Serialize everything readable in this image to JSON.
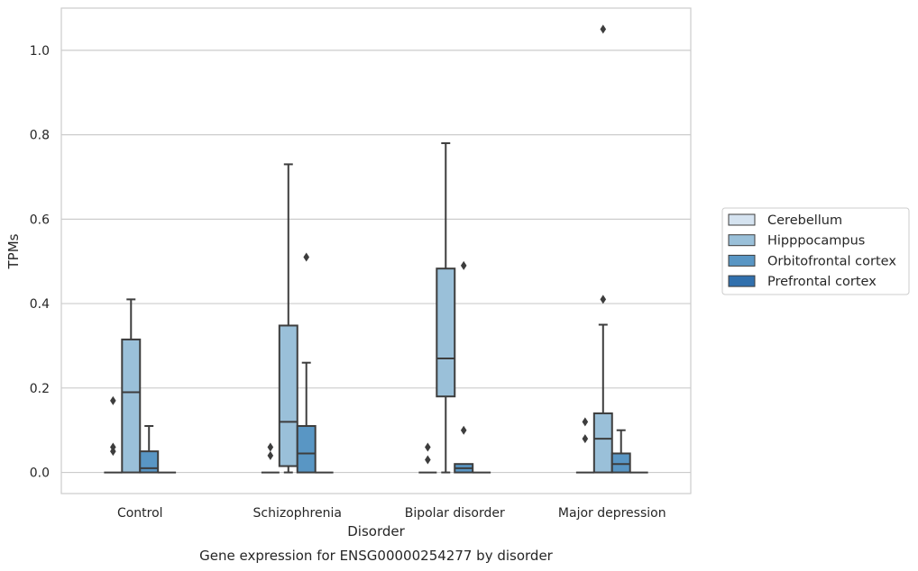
{
  "chart_data": {
    "type": "box",
    "title": "",
    "caption": "Gene expression for ENSG00000254277 by disorder",
    "xlabel": "Disorder",
    "ylabel": "TPMs",
    "ylim": [
      -0.05,
      1.1
    ],
    "yticks": [
      0.0,
      0.2,
      0.4,
      0.6,
      0.8,
      1.0
    ],
    "ytick_labels": [
      "0.0",
      "0.2",
      "0.4",
      "0.6",
      "0.8",
      "1.0"
    ],
    "grid": "horizontal",
    "legend_position": "right",
    "categories": [
      "Control",
      "Schizophrenia",
      "Bipolar disorder",
      "Major depression"
    ],
    "series": [
      {
        "name": "Cerebellum",
        "color": "#d5e3f0",
        "boxes": [
          {
            "min": 0,
            "q1": 0,
            "median": 0,
            "q3": 0,
            "max": 0,
            "outliers": [
              0.05,
              0.06,
              0.17
            ]
          },
          {
            "min": 0,
            "q1": 0,
            "median": 0,
            "q3": 0,
            "max": 0,
            "outliers": [
              0.04,
              0.06
            ]
          },
          {
            "min": 0,
            "q1": 0,
            "median": 0,
            "q3": 0,
            "max": 0,
            "outliers": [
              0.03,
              0.06
            ]
          },
          {
            "min": 0,
            "q1": 0,
            "median": 0,
            "q3": 0,
            "max": 0,
            "outliers": [
              0.08,
              0.12
            ]
          }
        ]
      },
      {
        "name": "Hipppocampus",
        "color": "#9ac0d9",
        "boxes": [
          {
            "min": 0,
            "q1": 0,
            "median": 0.19,
            "q3": 0.315,
            "max": 0.41,
            "outliers": []
          },
          {
            "min": 0,
            "q1": 0.015,
            "median": 0.12,
            "q3": 0.348,
            "max": 0.73,
            "outliers": []
          },
          {
            "min": 0,
            "q1": 0.18,
            "median": 0.27,
            "q3": 0.483,
            "max": 0.78,
            "outliers": []
          },
          {
            "min": 0,
            "q1": 0,
            "median": 0.08,
            "q3": 0.14,
            "max": 0.35,
            "outliers": [
              0.41,
              1.05
            ]
          }
        ]
      },
      {
        "name": "Orbitofrontal cortex",
        "color": "#5996c4",
        "boxes": [
          {
            "min": 0,
            "q1": 0,
            "median": 0.01,
            "q3": 0.05,
            "max": 0.11,
            "outliers": []
          },
          {
            "min": 0,
            "q1": 0,
            "median": 0.045,
            "q3": 0.11,
            "max": 0.26,
            "outliers": [
              0.51
            ]
          },
          {
            "min": 0,
            "q1": 0,
            "median": 0.01,
            "q3": 0.02,
            "max": 0.02,
            "outliers": [
              0.1,
              0.49
            ]
          },
          {
            "min": 0,
            "q1": 0,
            "median": 0.02,
            "q3": 0.045,
            "max": 0.1,
            "outliers": []
          }
        ]
      },
      {
        "name": "Prefrontal cortex",
        "color": "#3170ad",
        "boxes": [
          {
            "min": 0,
            "q1": 0,
            "median": 0,
            "q3": 0,
            "max": 0,
            "outliers": []
          },
          {
            "min": 0,
            "q1": 0,
            "median": 0,
            "q3": 0,
            "max": 0,
            "outliers": []
          },
          {
            "min": 0,
            "q1": 0,
            "median": 0,
            "q3": 0,
            "max": 0,
            "outliers": []
          },
          {
            "min": 0,
            "q1": 0,
            "median": 0,
            "q3": 0,
            "max": 0,
            "outliers": []
          }
        ]
      }
    ]
  }
}
